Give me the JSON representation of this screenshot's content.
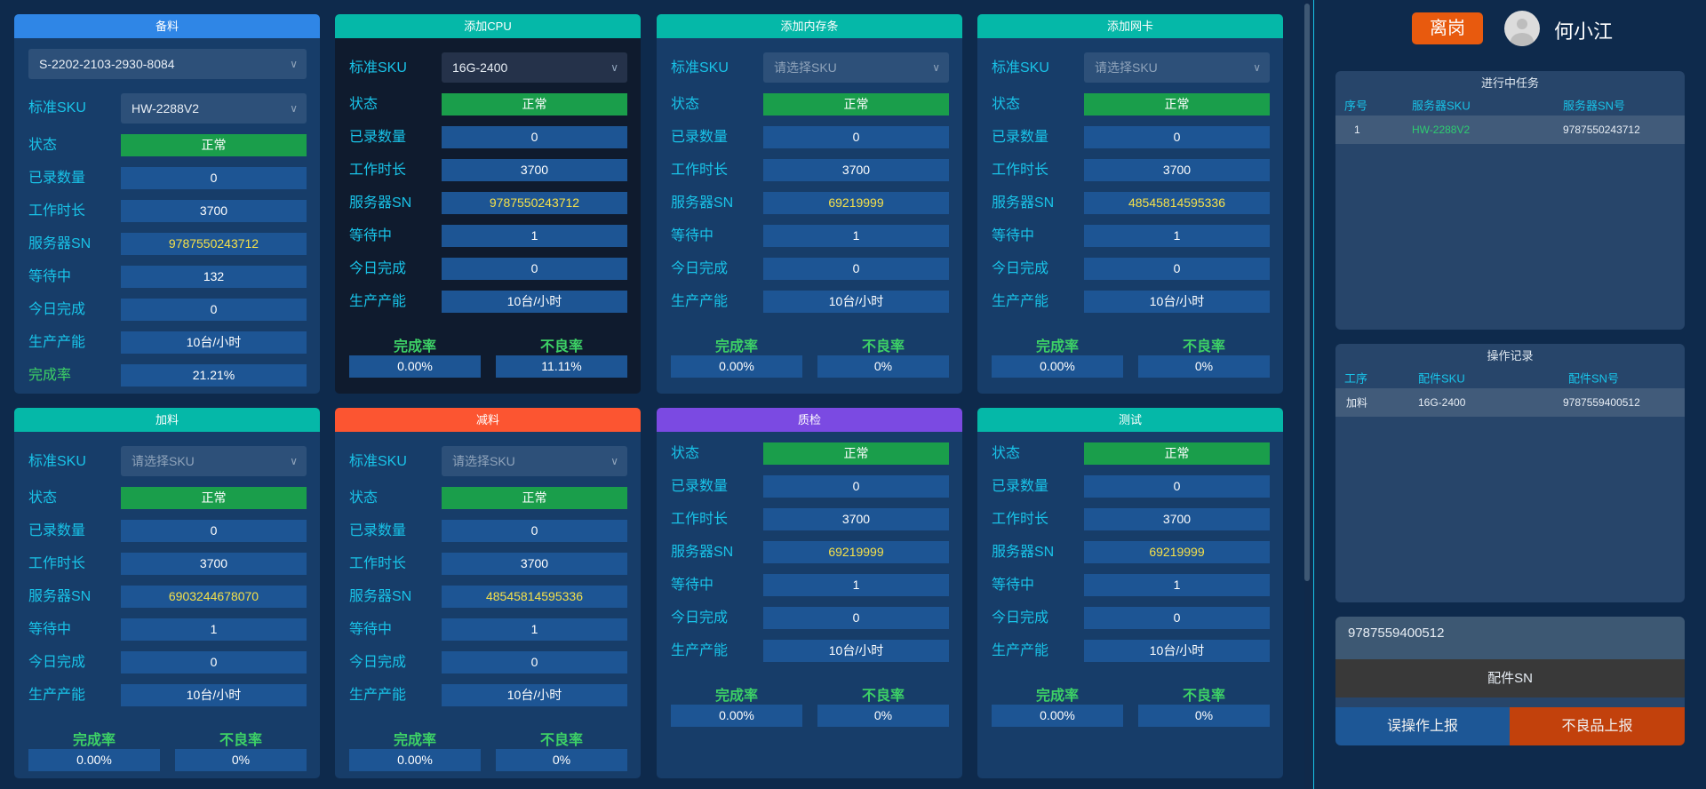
{
  "colors": {
    "bg": "#0e2a4c",
    "label": "#19c3e8",
    "status_ok": "#1a9e4b",
    "sn_text": "#f5e04a",
    "rate_label": "#3dd166"
  },
  "row_labels": {
    "sku": "标准SKU",
    "status": "状态",
    "recorded": "已录数量",
    "work_time": "工作时长",
    "server_sn": "服务器SN",
    "waiting": "等待中",
    "done_today": "今日完成",
    "capacity": "生产产能",
    "completion": "完成率",
    "defect": "不良率"
  },
  "cards": [
    {
      "title": "备料",
      "header_color": "#2f86e6",
      "top_select": "S-2202-2103-2930-8084",
      "sku": "HW-2288V2",
      "sku_placeholder": false,
      "status": "正常",
      "recorded": "0",
      "work_time": "3700",
      "server_sn": "9787550243712",
      "waiting": "132",
      "done_today": "0",
      "capacity": "10台/小时",
      "completion": "21.21%"
    },
    {
      "title": "添加CPU",
      "header_color": "#05b8a8",
      "sku": "16G-2400",
      "sku_placeholder": false,
      "selected": true,
      "status": "正常",
      "recorded": "0",
      "work_time": "3700",
      "server_sn": "9787550243712",
      "waiting": "1",
      "done_today": "0",
      "capacity": "10台/小时",
      "completion": "0.00%",
      "defect": "11.11%"
    },
    {
      "title": "添加内存条",
      "header_color": "#05b8a8",
      "sku": "请选择SKU",
      "sku_placeholder": true,
      "status": "正常",
      "recorded": "0",
      "work_time": "3700",
      "server_sn": "69219999",
      "waiting": "1",
      "done_today": "0",
      "capacity": "10台/小时",
      "completion": "0.00%",
      "defect": "0%"
    },
    {
      "title": "添加网卡",
      "header_color": "#05b8a8",
      "sku": "请选择SKU",
      "sku_placeholder": true,
      "status": "正常",
      "recorded": "0",
      "work_time": "3700",
      "server_sn": "48545814595336",
      "waiting": "1",
      "done_today": "0",
      "capacity": "10台/小时",
      "completion": "0.00%",
      "defect": "0%"
    },
    {
      "title": "加料",
      "header_color": "#05b8a8",
      "sku": "请选择SKU",
      "sku_placeholder": true,
      "status": "正常",
      "recorded": "0",
      "work_time": "3700",
      "server_sn": "6903244678070",
      "waiting": "1",
      "done_today": "0",
      "capacity": "10台/小时",
      "completion": "0.00%",
      "defect": "0%"
    },
    {
      "title": "减料",
      "header_color": "#fc5531",
      "sku": "请选择SKU",
      "sku_placeholder": true,
      "status": "正常",
      "recorded": "0",
      "work_time": "3700",
      "server_sn": "48545814595336",
      "waiting": "1",
      "done_today": "0",
      "capacity": "10台/小时",
      "completion": "0.00%",
      "defect": "0%"
    },
    {
      "title": "质检",
      "header_color": "#7b4ae2",
      "status": "正常",
      "recorded": "0",
      "work_time": "3700",
      "server_sn": "69219999",
      "waiting": "1",
      "done_today": "0",
      "capacity": "10台/小时",
      "completion": "0.00%",
      "defect": "0%"
    },
    {
      "title": "测试",
      "header_color": "#05b8a8",
      "status": "正常",
      "recorded": "0",
      "work_time": "3700",
      "server_sn": "69219999",
      "waiting": "1",
      "done_today": "0",
      "capacity": "10台/小时",
      "completion": "0.00%",
      "defect": "0%"
    }
  ],
  "user": {
    "leave_label": "离岗",
    "name": "何小江"
  },
  "tasks": {
    "title": "进行中任务",
    "headers": [
      "序号",
      "服务器SKU",
      "服务器SN号"
    ],
    "rows": [
      [
        "1",
        "HW-2288V2",
        "9787550243712"
      ]
    ]
  },
  "records": {
    "title": "操作记录",
    "headers": [
      "工序",
      "配件SKU",
      "配件SN号"
    ],
    "rows": [
      [
        "加料",
        "16G-2400",
        "9787559400512"
      ]
    ]
  },
  "sn_input": {
    "value": "9787559400512"
  },
  "buttons": {
    "part_sn": "配件SN",
    "misop_report": "误操作上报",
    "defect_report": "不良品上报"
  }
}
